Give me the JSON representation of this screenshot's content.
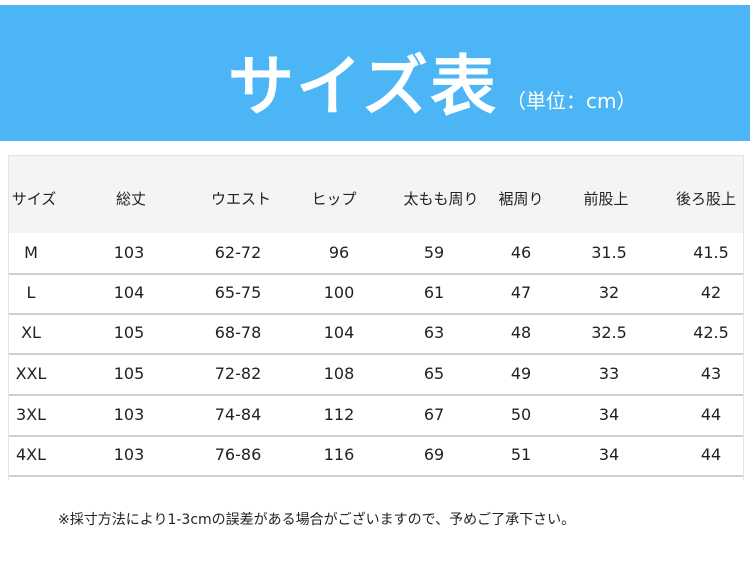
{
  "banner": {
    "title": "サイズ表",
    "unit": "（単位：cm）",
    "color": "#4bb5f6"
  },
  "table": {
    "headers": [
      "サイズ",
      "総丈",
      "ウエスト",
      "ヒップ",
      "太もも周り",
      "裾周り",
      "前股上",
      "後ろ股上"
    ],
    "rows": [
      [
        "M",
        "103",
        "62-72",
        "96",
        "59",
        "46",
        "31.5",
        "41.5"
      ],
      [
        "L",
        "104",
        "65-75",
        "100",
        "61",
        "47",
        "32",
        "42"
      ],
      [
        "XL",
        "105",
        "68-78",
        "104",
        "63",
        "48",
        "32.5",
        "42.5"
      ],
      [
        "XXL",
        "105",
        "72-82",
        "108",
        "65",
        "49",
        "33",
        "43"
      ],
      [
        "3XL",
        "103",
        "74-84",
        "112",
        "67",
        "50",
        "34",
        "44"
      ],
      [
        "4XL",
        "103",
        "76-86",
        "116",
        "69",
        "51",
        "34",
        "44"
      ]
    ]
  },
  "note": "※採寸方法により1-3cmの誤差がある場合がございますので、予めご了承下さい。"
}
